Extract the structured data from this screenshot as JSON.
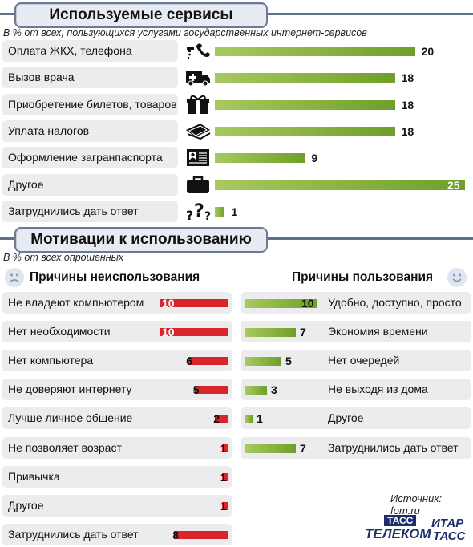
{
  "services": {
    "title": "Используемые сервисы",
    "note": "В % от всех, пользующихся услугами государственных интернет-сервисов",
    "rows": [
      {
        "label": "Оплата ЖКХ, телефона",
        "value": "20",
        "icon": "faucet-phone-icon"
      },
      {
        "label": "Вызов врача",
        "value": "18",
        "icon": "ambulance-icon"
      },
      {
        "label": "Приобретение билетов, товаров",
        "value": "18",
        "icon": "gift-icon"
      },
      {
        "label": "Уплата налогов",
        "value": "18",
        "icon": "money-icon"
      },
      {
        "label": "Оформление загранпаспорта",
        "value": "9",
        "icon": "passport-icon"
      },
      {
        "label": "Другое",
        "value": "25",
        "icon": "briefcase-icon"
      },
      {
        "label": "Затруднились дать ответ",
        "value": "1",
        "icon": "question-icon"
      }
    ]
  },
  "motivation": {
    "title": "Мотивации к использованию",
    "note": "В % от всех опрошенных",
    "nonuse_title": "Причины неиспользования",
    "use_title": "Причины пользования",
    "nonuse": [
      {
        "label": "Не владеют компьютером",
        "value": "10"
      },
      {
        "label": "Нет необходимости",
        "value": "10"
      },
      {
        "label": "Нет компьютера",
        "value": "6"
      },
      {
        "label": "Не доверяют интернету",
        "value": "5"
      },
      {
        "label": "Лучше личное общение",
        "value": "2"
      },
      {
        "label": "Не позволяет возраст",
        "value": "1"
      },
      {
        "label": "Привычка",
        "value": "1"
      },
      {
        "label": "Другое",
        "value": "1"
      },
      {
        "label": "Затруднились дать ответ",
        "value": "8"
      }
    ],
    "use": [
      {
        "label": "Удобно, доступно, просто",
        "value": "10"
      },
      {
        "label": "Экономия времени",
        "value": "7"
      },
      {
        "label": "Нет очередей",
        "value": "5"
      },
      {
        "label": "Не выходя из дома",
        "value": "3"
      },
      {
        "label": "Другое",
        "value": "1"
      },
      {
        "label": "Затруднились дать ответ",
        "value": "7"
      }
    ]
  },
  "source": "Источник: fom.ru",
  "logos": {
    "left_top": "ТАСС",
    "left_bottom": "ТЕЛЕКОМ",
    "right_top": "ИТАР",
    "right_bottom": "ТАСС"
  },
  "colors": {
    "green": "#7aa834",
    "red": "#d8262c",
    "header_bg": "#e7ecf4",
    "rule": "#5f6f8c"
  },
  "chart_data": [
    {
      "type": "bar",
      "title": "Используемые сервисы",
      "subtitle": "В % от всех, пользующихся услугами государственных интернет-сервисов",
      "categories": [
        "Оплата ЖКХ, телефона",
        "Вызов врача",
        "Приобретение билетов, товаров",
        "Уплата налогов",
        "Оформление загранпаспорта",
        "Другое",
        "Затруднились дать ответ"
      ],
      "values": [
        20,
        18,
        18,
        18,
        9,
        25,
        1
      ]
    },
    {
      "type": "bar",
      "title": "Причины неиспользования",
      "subtitle": "В % от всех опрошенных",
      "categories": [
        "Не владеют компьютером",
        "Нет необходимости",
        "Нет компьютера",
        "Не доверяют интернету",
        "Лучше личное общение",
        "Не позволяет возраст",
        "Привычка",
        "Другое",
        "Затруднились дать ответ"
      ],
      "values": [
        10,
        10,
        6,
        5,
        2,
        1,
        1,
        1,
        8
      ]
    },
    {
      "type": "bar",
      "title": "Причины пользования",
      "subtitle": "В % от всех опрошенных",
      "categories": [
        "Удобно, доступно, просто",
        "Экономия времени",
        "Нет очередей",
        "Не выходя из дома",
        "Другое",
        "Затруднились дать ответ"
      ],
      "values": [
        10,
        7,
        5,
        3,
        1,
        7
      ]
    }
  ]
}
